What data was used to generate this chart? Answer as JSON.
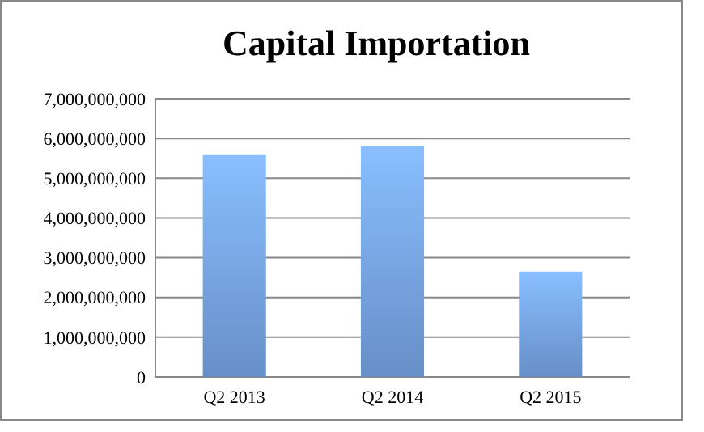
{
  "chart_data": {
    "type": "bar",
    "title": "Capital Importation",
    "categories": [
      "Q2 2013",
      "Q2 2014",
      "Q2 2015"
    ],
    "values": [
      5600000000,
      5800000000,
      2650000000
    ],
    "color": "#79a8ea",
    "ylim": [
      0,
      7000000000
    ],
    "yticks": [
      {
        "value": 0,
        "label": "0"
      },
      {
        "value": 1000000000,
        "label": "1,000,000,000"
      },
      {
        "value": 2000000000,
        "label": "2,000,000,000"
      },
      {
        "value": 3000000000,
        "label": "3,000,000,000"
      },
      {
        "value": 4000000000,
        "label": "4,000,000,000"
      },
      {
        "value": 5000000000,
        "label": "5,000,000,000"
      },
      {
        "value": 6000000000,
        "label": "6,000,000,000"
      },
      {
        "value": 7000000000,
        "label": "7,000,000,000"
      }
    ],
    "grid": "y"
  }
}
